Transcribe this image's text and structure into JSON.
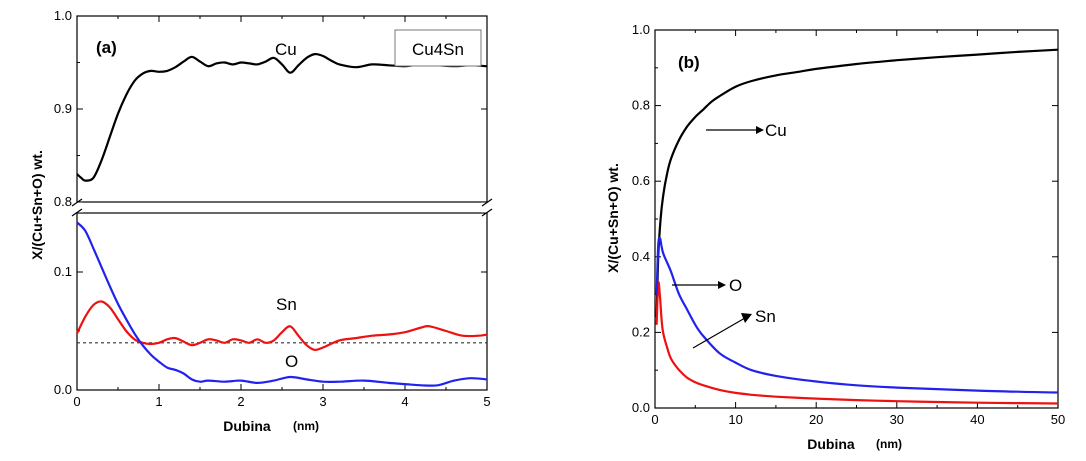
{
  "chart_data": [
    {
      "type": "line",
      "panel_label": "(a)",
      "box_label": "Cu4Sn",
      "xlabel": "Dubina",
      "xunit": "(nm)",
      "ylabel": "X/(Cu+Sn+O) wt.",
      "xlim": [
        0,
        5
      ],
      "y_upper_lim": [
        0.8,
        1.0
      ],
      "y_lower_lim": [
        0,
        0.15
      ],
      "axis_break": true,
      "x_ticks": [
        "0",
        "1",
        "2",
        "3",
        "4",
        "5"
      ],
      "y_upper_ticks": [
        "0.8",
        "0.9",
        "1.0"
      ],
      "y_lower_ticks": [
        "0.0",
        "0.1"
      ],
      "reference_line": {
        "y": 0.04,
        "style": "dashed"
      },
      "series": [
        {
          "name": "Cu",
          "color": "#000000",
          "x": [
            0,
            0.05,
            0.1,
            0.2,
            0.3,
            0.4,
            0.5,
            0.6,
            0.7,
            0.8,
            0.9,
            1.0,
            1.1,
            1.2,
            1.3,
            1.4,
            1.5,
            1.6,
            1.7,
            1.8,
            1.9,
            2.0,
            2.1,
            2.2,
            2.3,
            2.4,
            2.5,
            2.6,
            2.7,
            2.8,
            2.9,
            3.0,
            3.1,
            3.2,
            3.4,
            3.6,
            3.8,
            4.0,
            4.2,
            4.4,
            4.6,
            4.8,
            5.0
          ],
          "y": [
            0.83,
            0.826,
            0.823,
            0.826,
            0.845,
            0.87,
            0.895,
            0.915,
            0.93,
            0.938,
            0.941,
            0.94,
            0.941,
            0.945,
            0.951,
            0.956,
            0.951,
            0.946,
            0.949,
            0.95,
            0.948,
            0.95,
            0.949,
            0.948,
            0.951,
            0.955,
            0.948,
            0.939,
            0.947,
            0.955,
            0.959,
            0.957,
            0.952,
            0.948,
            0.945,
            0.948,
            0.947,
            0.946,
            0.948,
            0.947,
            0.946,
            0.947,
            0.946
          ]
        },
        {
          "name": "Sn",
          "color": "#ee1111",
          "x": [
            0,
            0.1,
            0.2,
            0.3,
            0.4,
            0.5,
            0.6,
            0.7,
            0.8,
            0.9,
            1.0,
            1.1,
            1.2,
            1.3,
            1.4,
            1.5,
            1.6,
            1.7,
            1.8,
            1.9,
            2.0,
            2.1,
            2.2,
            2.3,
            2.4,
            2.5,
            2.6,
            2.7,
            2.8,
            2.9,
            3.0,
            3.2,
            3.4,
            3.6,
            3.8,
            4.0,
            4.2,
            4.3,
            4.5,
            4.7,
            4.9,
            5.0
          ],
          "y": [
            0.048,
            0.062,
            0.072,
            0.075,
            0.07,
            0.06,
            0.05,
            0.043,
            0.04,
            0.039,
            0.04,
            0.043,
            0.044,
            0.041,
            0.038,
            0.04,
            0.043,
            0.042,
            0.04,
            0.043,
            0.042,
            0.04,
            0.043,
            0.04,
            0.042,
            0.049,
            0.054,
            0.046,
            0.038,
            0.034,
            0.036,
            0.042,
            0.044,
            0.046,
            0.047,
            0.049,
            0.053,
            0.054,
            0.05,
            0.046,
            0.046,
            0.047
          ]
        },
        {
          "name": "O",
          "color": "#2222ee",
          "x": [
            0,
            0.1,
            0.2,
            0.3,
            0.4,
            0.5,
            0.6,
            0.7,
            0.8,
            0.9,
            1.0,
            1.1,
            1.2,
            1.3,
            1.4,
            1.5,
            1.6,
            1.8,
            2.0,
            2.2,
            2.4,
            2.6,
            2.8,
            3.0,
            3.2,
            3.5,
            3.8,
            4.0,
            4.2,
            4.4,
            4.6,
            4.8,
            5.0
          ],
          "y": [
            0.142,
            0.135,
            0.12,
            0.104,
            0.088,
            0.073,
            0.06,
            0.048,
            0.038,
            0.03,
            0.024,
            0.019,
            0.017,
            0.014,
            0.009,
            0.007,
            0.008,
            0.007,
            0.008,
            0.006,
            0.008,
            0.011,
            0.009,
            0.007,
            0.007,
            0.008,
            0.006,
            0.005,
            0.004,
            0.004,
            0.008,
            0.01,
            0.009
          ]
        }
      ],
      "annotations": [
        {
          "text": "Cu",
          "x": 2.2,
          "y": 0.972
        },
        {
          "text": "Sn",
          "x": 2.6,
          "y": 0.068
        },
        {
          "text": "O",
          "x": 2.7,
          "y": 0.021
        }
      ]
    },
    {
      "type": "line",
      "panel_label": "(b)",
      "xlabel": "Dubina",
      "xunit": "(nm)",
      "ylabel": "X/(Cu+Sn+O) wt.",
      "xlim": [
        0,
        50
      ],
      "ylim": [
        0,
        1.0
      ],
      "x_ticks": [
        "0",
        "10",
        "20",
        "30",
        "40",
        "50"
      ],
      "y_ticks": [
        "0.0",
        "0.2",
        "0.4",
        "0.6",
        "0.8",
        "1.0"
      ],
      "series": [
        {
          "name": "Cu",
          "color": "#000000",
          "x": [
            0.2,
            0.4,
            0.7,
            1,
            1.5,
            2,
            3,
            4,
            5,
            6,
            7,
            8,
            10,
            12,
            15,
            18,
            20,
            25,
            30,
            35,
            40,
            45,
            50
          ],
          "y": [
            0.24,
            0.4,
            0.5,
            0.56,
            0.62,
            0.66,
            0.71,
            0.745,
            0.77,
            0.79,
            0.81,
            0.825,
            0.85,
            0.865,
            0.88,
            0.89,
            0.897,
            0.91,
            0.92,
            0.928,
            0.935,
            0.942,
            0.948
          ]
        },
        {
          "name": "Sn",
          "color": "#ee1111",
          "x": [
            0.2,
            0.4,
            0.6,
            0.8,
            1,
            1.5,
            2,
            3,
            4,
            5,
            6,
            8,
            10,
            12,
            15,
            20,
            25,
            30,
            35,
            40,
            45,
            50
          ],
          "y": [
            0.22,
            0.33,
            0.3,
            0.24,
            0.2,
            0.16,
            0.13,
            0.1,
            0.08,
            0.068,
            0.06,
            0.048,
            0.04,
            0.035,
            0.03,
            0.025,
            0.021,
            0.018,
            0.016,
            0.014,
            0.013,
            0.012
          ]
        },
        {
          "name": "O",
          "color": "#2222ee",
          "x": [
            0.2,
            0.4,
            0.6,
            0.8,
            1,
            1.5,
            2,
            3,
            4,
            5,
            6,
            8,
            10,
            12,
            15,
            20,
            25,
            30,
            35,
            40,
            45,
            50
          ],
          "y": [
            0.3,
            0.43,
            0.45,
            0.43,
            0.41,
            0.385,
            0.36,
            0.3,
            0.26,
            0.22,
            0.19,
            0.145,
            0.12,
            0.1,
            0.085,
            0.07,
            0.06,
            0.054,
            0.05,
            0.046,
            0.043,
            0.041
          ]
        }
      ],
      "annotations": [
        {
          "text": "Cu",
          "x": 13,
          "y": 0.72
        },
        {
          "text": "O",
          "x": 10,
          "y": 0.38
        },
        {
          "text": "Sn",
          "x": 13,
          "y": 0.28
        }
      ]
    }
  ]
}
